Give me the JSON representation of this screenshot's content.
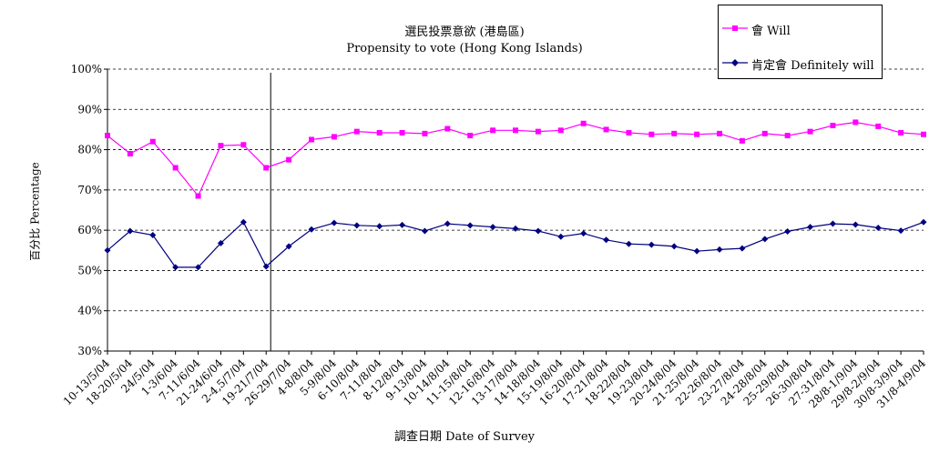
{
  "chart_data": {
    "type": "line",
    "title": "選民投票意欲 (港島區)",
    "subtitle": "Propensity to vote (Hong Kong Islands)",
    "xlabel": "調查日期 Date of Survey",
    "ylabel": "百分比 Percentage",
    "ylim": [
      30,
      100
    ],
    "yticks": [
      "30%",
      "40%",
      "50%",
      "60%",
      "70%",
      "80%",
      "90%",
      "100%"
    ],
    "grid": "horizontal dashed",
    "legend_position": "top-right",
    "categories": [
      "10-13/5/04",
      "18-20/5/04",
      "24/5/04",
      "1-3/6/04",
      "7-11/6/04",
      "21-24/6/04",
      "2-4,5/7/04",
      "19-21/7/04",
      "26-29/7/04",
      "4-8/8/04",
      "5-9/8/04",
      "6-10/8/04",
      "7-11/8/04",
      "8-12/8/04",
      "9-13/8/04",
      "10-14/8/04",
      "11-15/8/04",
      "12-16/8/04",
      "13-17/8/04",
      "14-18/8/04",
      "15-19/8/04",
      "16-20/8/04",
      "17-21/8/04",
      "18-22/8/04",
      "19-23/8/04",
      "20-24/8/04",
      "21-25/8/04",
      "22-26/8/04",
      "23-27/8/04",
      "24-28/8/04",
      "25-29/8/04",
      "26-30/8/04",
      "27-31/8/04",
      "28/8-1/9/04",
      "29/8-2/9/04",
      "30/8-3/9/04",
      "31/8-4/9/04"
    ],
    "series": [
      {
        "name": "會 Will",
        "color": "#ff00ff",
        "marker": "square",
        "values": [
          83.5,
          79,
          82,
          75.5,
          68.5,
          81,
          81.2,
          75.5,
          77.5,
          82.5,
          83.2,
          84.5,
          84.2,
          84.2,
          84,
          85.2,
          83.5,
          84.8,
          84.8,
          84.5,
          84.8,
          86.5,
          85,
          84.2,
          83.8,
          84,
          83.8,
          84,
          82.2,
          84,
          83.5,
          84.5,
          86,
          86.8,
          85.8,
          84.2,
          83.8
        ]
      },
      {
        "name": "肯定會 Definitely will",
        "color": "#000080",
        "marker": "diamond",
        "values": [
          55,
          59.8,
          58.8,
          50.8,
          50.8,
          56.8,
          62,
          51,
          56,
          60.2,
          61.8,
          61.2,
          61,
          61.3,
          59.8,
          61.6,
          61.2,
          60.8,
          60.4,
          59.8,
          58.4,
          59.2,
          57.6,
          56.6,
          56.4,
          56,
          54.8,
          55.2,
          55.5,
          57.8,
          59.7,
          60.8,
          61.6,
          61.4,
          60.6,
          59.9,
          62
        ]
      }
    ],
    "annotations": [
      {
        "type": "vertical-line",
        "after_category": "19-21/7/04"
      }
    ]
  }
}
